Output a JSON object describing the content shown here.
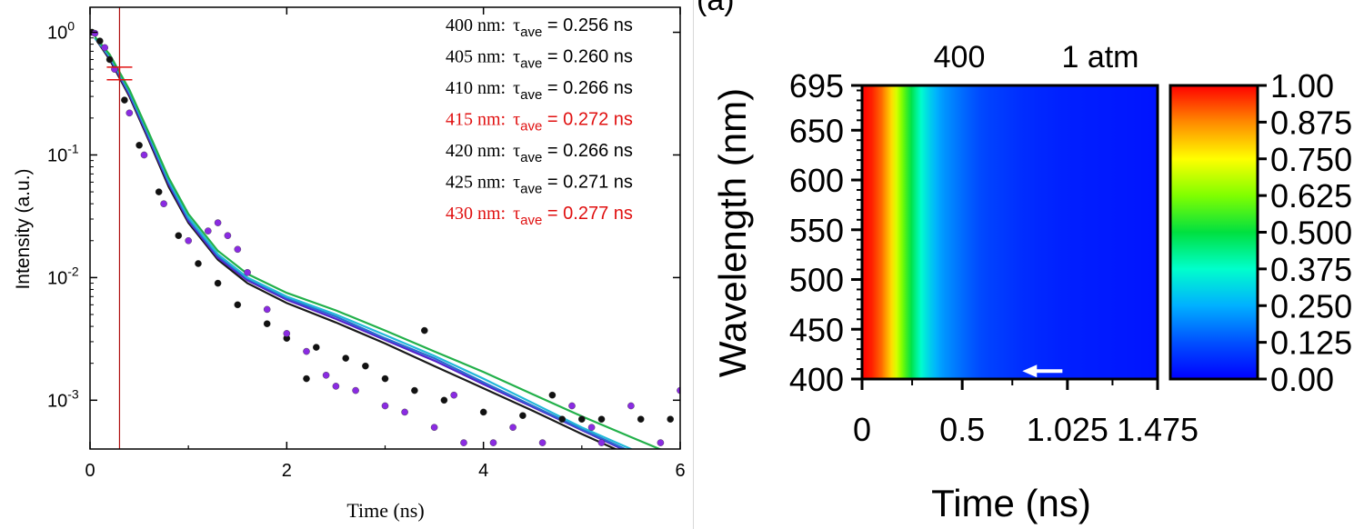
{
  "chart_data": [
    {
      "type": "scatter",
      "panel": "left",
      "yscale": "log",
      "xlim": [
        0,
        6
      ],
      "ylim": [
        0.0004,
        1.6
      ],
      "xlabel": "Time (ns)",
      "ylabel": "Intensity (a.u.)",
      "xticks": [
        "0",
        "2",
        "4",
        "6"
      ],
      "yticks": [
        {
          "value": 1,
          "base": "10",
          "exp": "0"
        },
        {
          "value": 0.1,
          "base": "10",
          "exp": "-1"
        },
        {
          "value": 0.01,
          "base": "10",
          "exp": "-2"
        },
        {
          "value": 0.001,
          "base": "10",
          "exp": "-3"
        }
      ],
      "marker_line_x": 0.3,
      "annotations": [
        {
          "wavelength": "400 nm:",
          "tau": "τ",
          "sub": "ave",
          "value": " = 0.256 ns",
          "color": "#000000"
        },
        {
          "wavelength": "405 nm:",
          "tau": "τ",
          "sub": "ave",
          "value": " = 0.260 ns",
          "color": "#000000"
        },
        {
          "wavelength": "410 nm:",
          "tau": "τ",
          "sub": "ave",
          "value": " = 0.266 ns",
          "color": "#000000"
        },
        {
          "wavelength": "415 nm:",
          "tau": "τ",
          "sub": "ave",
          "value": " = 0.272 ns",
          "color": "#e01010"
        },
        {
          "wavelength": "420 nm:",
          "tau": "τ",
          "sub": "ave",
          "value": " = 0.266 ns",
          "color": "#000000"
        },
        {
          "wavelength": "425 nm:",
          "tau": "τ",
          "sub": "ave",
          "value": " = 0.271 ns",
          "color": "#000000"
        },
        {
          "wavelength": "430 nm:",
          "tau": "τ",
          "sub": "ave",
          "value": " = 0.277 ns",
          "color": "#e01010"
        }
      ],
      "fit_curves": [
        {
          "color": "#1a1a1a",
          "x": [
            0.05,
            0.2,
            0.4,
            0.6,
            0.8,
            1.0,
            1.3,
            1.6,
            2.0,
            2.5,
            3.0,
            3.5,
            4.0,
            4.5,
            5.0,
            5.5,
            6.0
          ],
          "y": [
            0.9,
            0.6,
            0.3,
            0.13,
            0.055,
            0.028,
            0.014,
            0.009,
            0.0062,
            0.0043,
            0.0029,
            0.0019,
            0.00125,
            0.00082,
            0.00053,
            0.00035,
            0.00023
          ]
        },
        {
          "color": "#5522cc",
          "x": [
            0.05,
            0.2,
            0.4,
            0.6,
            0.8,
            1.0,
            1.3,
            1.6,
            2.0,
            2.5,
            3.0,
            3.5,
            4.0,
            4.5,
            5.0,
            5.5,
            6.0
          ],
          "y": [
            0.9,
            0.62,
            0.31,
            0.135,
            0.058,
            0.029,
            0.0145,
            0.0095,
            0.0066,
            0.0046,
            0.0031,
            0.0021,
            0.00135,
            0.00088,
            0.00057,
            0.00037,
            0.00024
          ]
        },
        {
          "color": "#2a6ad0",
          "x": [
            0.05,
            0.2,
            0.4,
            0.6,
            0.8,
            1.0,
            1.3,
            1.6,
            2.0,
            2.5,
            3.0,
            3.5,
            4.0,
            4.5,
            5.0,
            5.5,
            6.0
          ],
          "y": [
            0.9,
            0.63,
            0.32,
            0.14,
            0.06,
            0.03,
            0.015,
            0.0098,
            0.0068,
            0.0048,
            0.0032,
            0.0022,
            0.0014,
            0.0009,
            0.00058,
            0.00038,
            0.00025
          ]
        },
        {
          "color": "#22b8d8",
          "x": [
            0.05,
            0.2,
            0.4,
            0.6,
            0.8,
            1.0,
            1.3,
            1.6,
            2.0,
            2.5,
            3.0,
            3.5,
            4.0,
            4.5,
            5.0,
            5.5,
            6.0
          ],
          "y": [
            0.9,
            0.64,
            0.33,
            0.145,
            0.062,
            0.031,
            0.0155,
            0.01,
            0.007,
            0.005,
            0.0034,
            0.0023,
            0.0015,
            0.00095,
            0.0006,
            0.0004,
            0.00026
          ]
        },
        {
          "color": "#22b04a",
          "x": [
            0.05,
            0.2,
            0.4,
            0.6,
            0.8,
            1.0,
            1.3,
            1.6,
            2.0,
            2.5,
            3.0,
            3.5,
            4.0,
            4.5,
            5.0,
            5.5,
            6.0
          ],
          "y": [
            0.92,
            0.66,
            0.34,
            0.15,
            0.065,
            0.033,
            0.0165,
            0.0107,
            0.0075,
            0.0054,
            0.0037,
            0.0025,
            0.0017,
            0.00112,
            0.00074,
            0.0005,
            0.00034
          ]
        }
      ],
      "scatter_series": [
        {
          "color": "#111111",
          "x": [
            0.02,
            0.1,
            0.2,
            0.35,
            0.5,
            0.7,
            0.9,
            1.1,
            1.3,
            1.5,
            1.8,
            2.0,
            2.3,
            2.6,
            2.8,
            3.0,
            3.3,
            3.6,
            4.0,
            4.4,
            4.8,
            5.2,
            5.6,
            5.9,
            2.2,
            3.4,
            4.7,
            5.0
          ],
          "y": [
            1.0,
            0.85,
            0.6,
            0.28,
            0.12,
            0.05,
            0.022,
            0.013,
            0.009,
            0.006,
            0.0042,
            0.0032,
            0.0027,
            0.0022,
            0.0019,
            0.0015,
            0.0012,
            0.001,
            0.0008,
            0.00075,
            0.0007,
            0.0007,
            0.0007,
            0.0007,
            0.0015,
            0.0037,
            0.0011,
            0.0007
          ]
        },
        {
          "color": "#8a2be2",
          "x": [
            0.05,
            0.15,
            0.25,
            0.4,
            0.55,
            0.75,
            1.0,
            1.2,
            1.3,
            1.4,
            1.5,
            1.6,
            1.8,
            2.0,
            2.2,
            2.4,
            2.7,
            3.0,
            3.2,
            3.5,
            3.8,
            4.1,
            4.3,
            4.6,
            4.9,
            5.2,
            5.5,
            5.8,
            6.0,
            2.5,
            3.7,
            5.1
          ],
          "y": [
            0.98,
            0.75,
            0.5,
            0.22,
            0.1,
            0.04,
            0.02,
            0.024,
            0.028,
            0.022,
            0.017,
            0.011,
            0.0055,
            0.0035,
            0.0025,
            0.0016,
            0.0012,
            0.0009,
            0.0008,
            0.0006,
            0.00045,
            0.00045,
            0.0006,
            0.00045,
            0.0009,
            0.00045,
            0.0009,
            0.00045,
            0.0012,
            0.0013,
            0.0011,
            0.0006
          ]
        }
      ],
      "error_bar": {
        "x": 0.3,
        "y": 0.46,
        "yerr_low": 0.41,
        "yerr_high": 0.52
      }
    },
    {
      "type": "heatmap",
      "panel": "right",
      "header": {
        "left": "400",
        "right": "1 atm"
      },
      "corner_label": "(a)",
      "xlabel": "Time (ns)",
      "ylabel": "Wavelength (nm)",
      "xlim": [
        0,
        1.475
      ],
      "ylim": [
        400,
        695
      ],
      "xticks": [
        {
          "value": 0,
          "label": "0"
        },
        {
          "value": 0.5,
          "label": "0.5"
        },
        {
          "value": 1.025,
          "label": "1.025"
        },
        {
          "value": 1.475,
          "label": "1.475"
        }
      ],
      "yticks": [
        {
          "value": 400,
          "label": "400"
        },
        {
          "value": 450,
          "label": "450"
        },
        {
          "value": 500,
          "label": "500"
        },
        {
          "value": 550,
          "label": "550"
        },
        {
          "value": 600,
          "label": "600"
        },
        {
          "value": 650,
          "label": "650"
        },
        {
          "value": 695,
          "label": "695"
        }
      ],
      "profile_time": [
        0,
        0.05,
        0.1,
        0.15,
        0.2,
        0.25,
        0.3,
        0.35,
        0.4,
        0.5,
        0.6,
        0.8,
        1.0,
        1.475
      ],
      "profile_intensity": [
        1.0,
        0.97,
        0.9,
        0.78,
        0.62,
        0.48,
        0.36,
        0.28,
        0.22,
        0.16,
        0.11,
        0.07,
        0.05,
        0.03
      ],
      "colorbar": {
        "min": 0,
        "max": 1,
        "ticks": [
          "1.00",
          "0.875",
          "0.750",
          "0.625",
          "0.500",
          "0.375",
          "0.250",
          "0.125",
          "0.00"
        ]
      },
      "arrow": {
        "from_time": 1.0,
        "to_time": 0.8,
        "wavelength": 408
      }
    }
  ]
}
